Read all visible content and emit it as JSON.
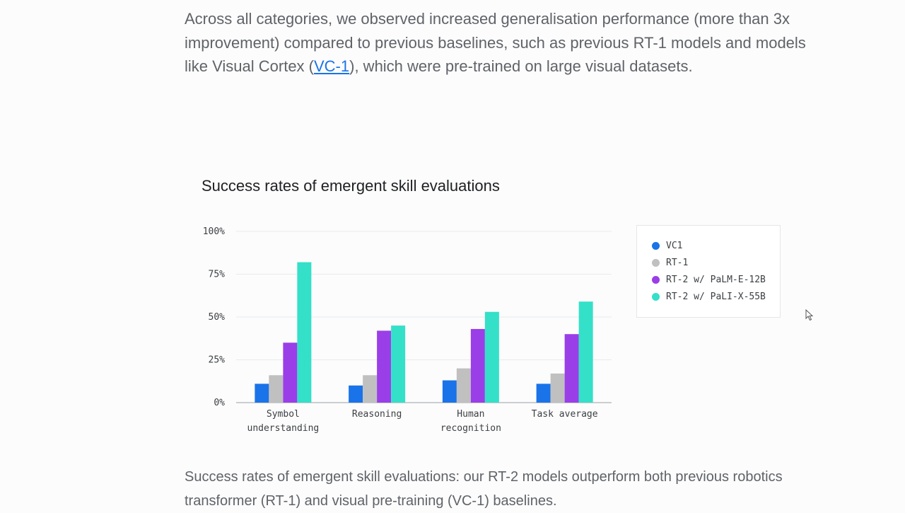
{
  "intro": {
    "text_before": "Across all categories, we observed increased generalisation performance (more than 3x improvement) compared to previous baselines, such as previous RT-1 models and models like Visual Cortex (",
    "link_text": "VC-1",
    "text_after": "), which were pre-trained on large visual datasets."
  },
  "chart_data": {
    "type": "bar",
    "title": "Success rates of emergent skill evaluations",
    "xlabel": "",
    "ylabel": "",
    "ylim": [
      0,
      100
    ],
    "yticks": [
      "0%",
      "25%",
      "50%",
      "75%",
      "100%"
    ],
    "ytick_values": [
      0,
      25,
      50,
      75,
      100
    ],
    "grid": true,
    "legend_position": "right",
    "categories": [
      [
        "Symbol",
        "understanding"
      ],
      [
        "Reasoning"
      ],
      [
        "Human",
        "recognition"
      ],
      [
        "Task average"
      ]
    ],
    "series": [
      {
        "name": "VC1",
        "color": "#1a73e8",
        "values": [
          11,
          10,
          13,
          11
        ]
      },
      {
        "name": "RT-1",
        "color": "#c0c0c0",
        "values": [
          16,
          16,
          20,
          17
        ]
      },
      {
        "name": "RT-2 w/ PaLM-E-12B",
        "color": "#9a3ee8",
        "values": [
          35,
          42,
          43,
          40
        ]
      },
      {
        "name": "RT-2 w/ PaLI-X-55B",
        "color": "#34e0c8",
        "values": [
          82,
          45,
          53,
          59
        ]
      }
    ]
  },
  "caption": "Success rates of emergent skill evaluations: our RT-2 models outperform both previous robotics transformer (RT-1) and visual pre-training (VC-1) baselines."
}
